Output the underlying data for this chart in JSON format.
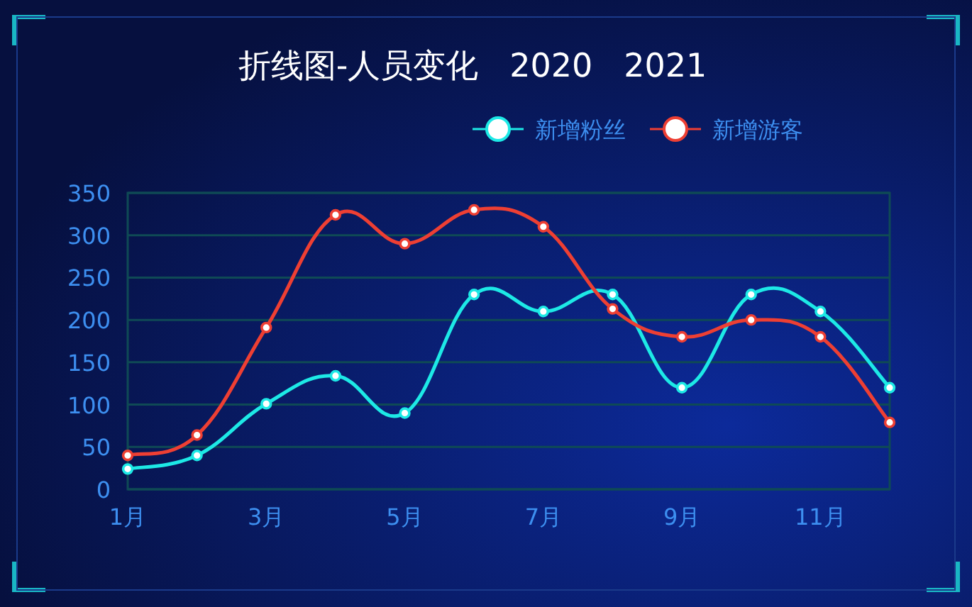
{
  "chart_data": {
    "type": "line",
    "title": "折线图-人员变化   2020   2021",
    "categories": [
      "1月",
      null,
      "3月",
      null,
      "5月",
      null,
      "7月",
      null,
      "9月",
      null,
      "11月",
      null
    ],
    "series": [
      {
        "name": "新增粉丝",
        "color": "#1de9e6",
        "values": [
          24,
          40,
          101,
          134,
          90,
          230,
          210,
          230,
          120,
          230,
          210,
          120
        ]
      },
      {
        "name": "新增游客",
        "color": "#ee3f33",
        "values": [
          40,
          64,
          191,
          324,
          290,
          330,
          310,
          213,
          180,
          200,
          180,
          79
        ]
      }
    ],
    "ylim": [
      0,
      350
    ],
    "yticks": [
      0,
      50,
      100,
      150,
      200,
      250,
      300,
      350
    ],
    "grid": "y",
    "legend": "top right",
    "marker": "circle",
    "line_style": "solid"
  }
}
